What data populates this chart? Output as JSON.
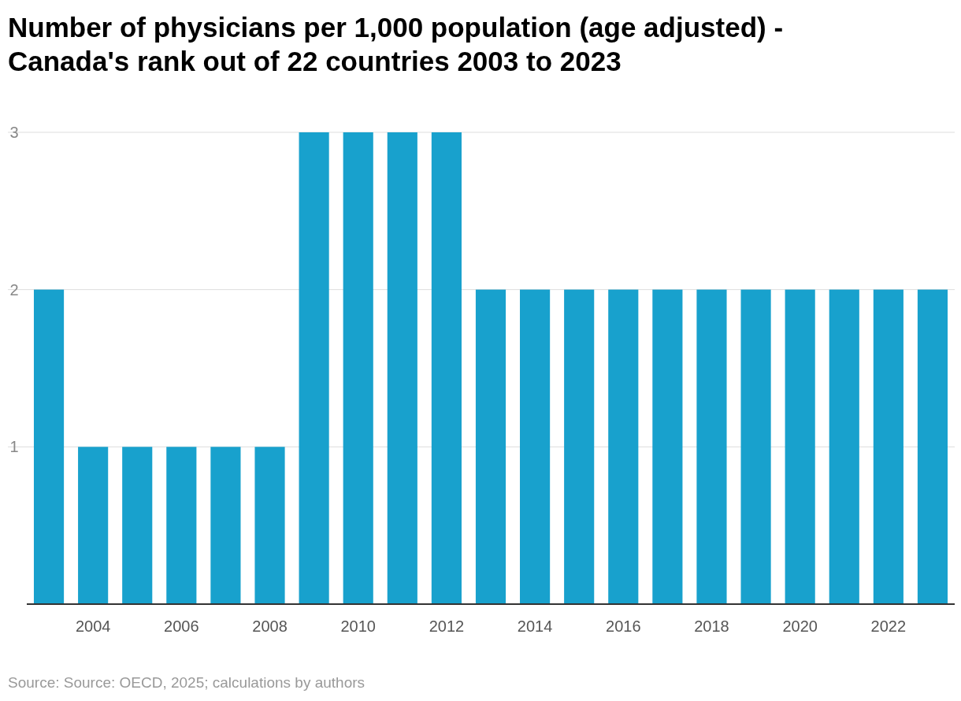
{
  "chart_data": {
    "type": "bar",
    "title": "Number of physicians per 1,000 population (age adjusted) - Canada's rank out of 22 countries 2003 to 2023",
    "categories": [
      null,
      "2004",
      null,
      "2006",
      null,
      "2008",
      null,
      "2010",
      null,
      "2012",
      null,
      "2014",
      null,
      "2016",
      null,
      "2018",
      null,
      "2020",
      null,
      "2022",
      null
    ],
    "values": [
      2,
      1,
      1,
      1,
      1,
      1,
      3,
      3,
      3,
      3,
      2,
      2,
      2,
      2,
      2,
      2,
      2,
      2,
      2,
      2,
      2
    ],
    "color": "#18a1cd",
    "ylim": [
      0,
      3
    ],
    "yticks": [
      1,
      2,
      3
    ],
    "grid": "y",
    "annotations": [
      "Source: Source: OECD, 2025; calculations by authors"
    ]
  }
}
